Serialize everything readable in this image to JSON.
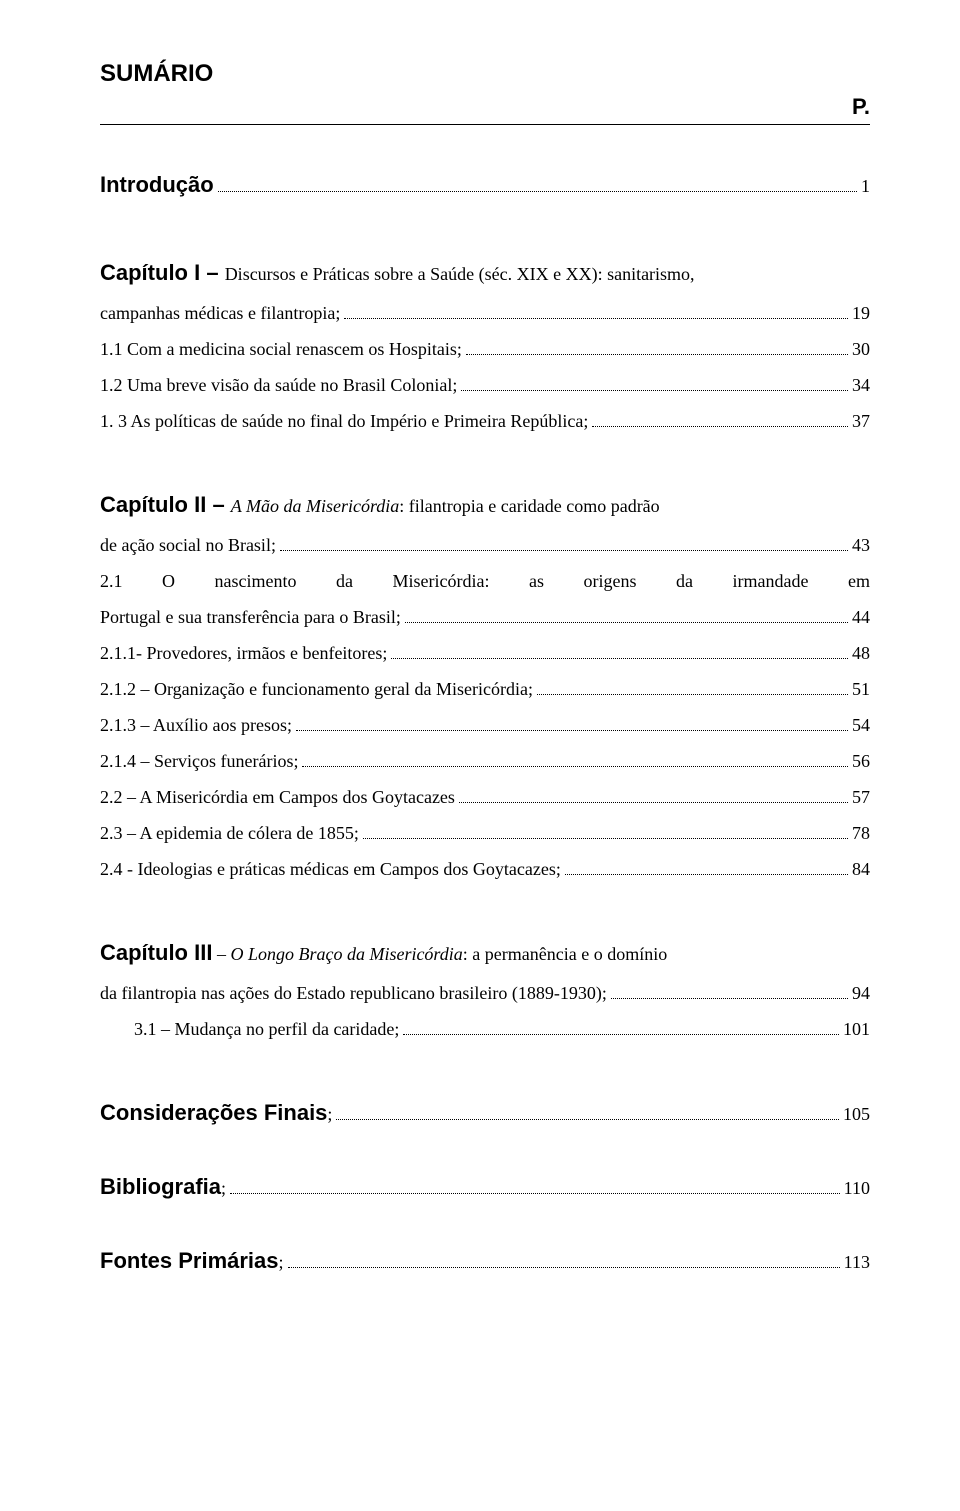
{
  "colors": {
    "text": "#000000",
    "background": "#ffffff",
    "rule": "#000000"
  },
  "typography": {
    "heading_font": "Arial, Helvetica, sans-serif",
    "body_font": "Georgia, 'Times New Roman', serif",
    "heading_size_pt": 17,
    "body_size_pt": 13,
    "line_height": 2.0
  },
  "heading": {
    "sumario": "SUMÁRIO",
    "p": "P."
  },
  "intro": {
    "bold": "Introdução",
    "page": "1"
  },
  "cap1": {
    "bold": "Capítulo I – ",
    "rest_pre": "Discursos e Práticas sobre a Saúde (séc. XIX e XX): sanitarismo,",
    "rest_last": "campanhas médicas e filantropia;",
    "page": "19",
    "s1": {
      "text": "1.1 Com a medicina social renascem os Hospitais;",
      "page": "30"
    },
    "s2": {
      "text": "1.2 Uma breve visão da saúde no Brasil Colonial;",
      "page": "34"
    },
    "s3": {
      "text": "1. 3 As políticas de saúde no final do Império e Primeira República;",
      "page": "37"
    }
  },
  "cap2": {
    "bold": "Capítulo II – ",
    "italic": "A Mão da Misericórdia",
    "rest_pre": ": filantropia e caridade como padrão",
    "rest_last": "de ação social no Brasil;",
    "page": "43",
    "s1": {
      "pre": "2.1 O nascimento da Misericórdia: as origens da irmandade em",
      "last": "Portugal e sua transferência para o Brasil;",
      "page": "44"
    },
    "s11": {
      "text": "2.1.1- Provedores, irmãos e benfeitores;",
      "page": "48"
    },
    "s12": {
      "text": "2.1.2 – Organização e funcionamento geral da Misericórdia;",
      "page": "51"
    },
    "s13": {
      "text": "2.1.3 – Auxílio aos presos;",
      "page": "54"
    },
    "s14": {
      "text": "2.1.4 – Serviços funerários;",
      "page": "56"
    },
    "s2": {
      "text": "2.2 – A Misericórdia em Campos dos Goytacazes",
      "page": "57"
    },
    "s3": {
      "text": "2.3 – A epidemia de cólera de 1855;",
      "page": "78"
    },
    "s4": {
      "text": "2.4 - Ideologias e práticas médicas em Campos dos Goytacazes;",
      "page": "84"
    }
  },
  "cap3": {
    "bold": "Capítulo III",
    "italic": "O Longo Braço da Misericórdia",
    "sep": " – ",
    "rest_pre": ": a permanência e o domínio",
    "rest_last": "da filantropia nas ações do Estado republicano brasileiro (1889-1930);",
    "page": "94",
    "s1": {
      "text": "3.1 – Mudança no perfil da caridade;",
      "page": "101"
    }
  },
  "cons": {
    "bold": "Considerações Finais",
    "semi": ";",
    "page": "105"
  },
  "bib": {
    "bold": "Bibliografia",
    "semi": ";",
    "page": "110"
  },
  "font": {
    "bold": "Fontes Primárias",
    "semi": ";",
    "page": "113"
  }
}
